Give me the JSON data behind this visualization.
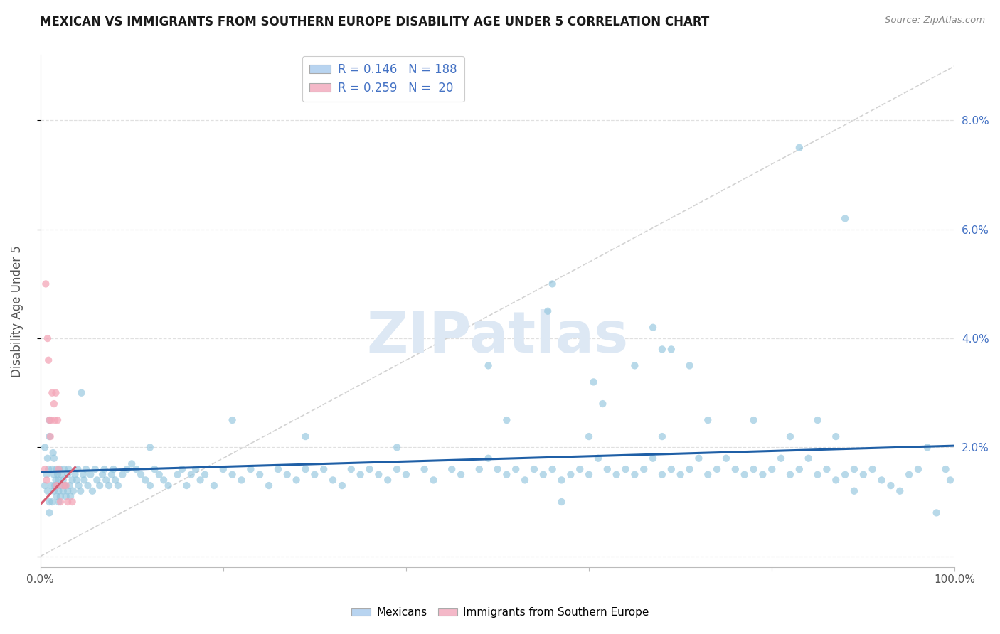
{
  "title": "MEXICAN VS IMMIGRANTS FROM SOUTHERN EUROPE DISABILITY AGE UNDER 5 CORRELATION CHART",
  "source": "Source: ZipAtlas.com",
  "ylabel": "Disability Age Under 5",
  "xlim": [
    0,
    1.0
  ],
  "ylim": [
    -0.002,
    0.092
  ],
  "plot_ylim": [
    0.0,
    0.09
  ],
  "yticks": [
    0.0,
    0.02,
    0.04,
    0.06,
    0.08
  ],
  "xtick_positions": [
    0.0,
    0.2,
    0.4,
    0.6,
    0.8,
    1.0
  ],
  "xtick_labels": [
    "0.0%",
    "",
    "",
    "",
    "",
    "100.0%"
  ],
  "blue_color": "#92c5de",
  "pink_color": "#f4a6b8",
  "blue_line_color": "#1f5fa6",
  "pink_line_color": "#d45a70",
  "dashed_line_color": "#c8c8c8",
  "background_color": "#ffffff",
  "grid_color": "#e0e0e0",
  "watermark_text": "ZIPatlas",
  "watermark_color": "#dde8f4",
  "blue_intercept": 0.0155,
  "blue_slope": 0.0048,
  "pink_intercept": 0.0095,
  "pink_slope": 0.18,
  "legend_label_blue": "R = 0.146   N = 188",
  "legend_label_pink": "R = 0.259   N =  20",
  "legend_facecolor_blue": "#b8d4f0",
  "legend_facecolor_pink": "#f4b8c8",
  "blue_x": [
    0.005,
    0.005,
    0.007,
    0.008,
    0.008,
    0.009,
    0.01,
    0.01,
    0.01,
    0.01,
    0.012,
    0.013,
    0.013,
    0.014,
    0.015,
    0.015,
    0.015,
    0.016,
    0.017,
    0.018,
    0.018,
    0.018,
    0.019,
    0.02,
    0.02,
    0.02,
    0.021,
    0.022,
    0.022,
    0.023,
    0.025,
    0.025,
    0.026,
    0.027,
    0.028,
    0.03,
    0.03,
    0.031,
    0.032,
    0.033,
    0.035,
    0.036,
    0.038,
    0.04,
    0.041,
    0.042,
    0.044,
    0.045,
    0.047,
    0.048,
    0.05,
    0.052,
    0.055,
    0.057,
    0.06,
    0.062,
    0.065,
    0.068,
    0.07,
    0.072,
    0.075,
    0.078,
    0.08,
    0.082,
    0.085,
    0.09,
    0.095,
    0.1,
    0.105,
    0.11,
    0.115,
    0.12,
    0.125,
    0.13,
    0.135,
    0.14,
    0.15,
    0.155,
    0.16,
    0.165,
    0.17,
    0.175,
    0.18,
    0.19,
    0.2,
    0.21,
    0.22,
    0.23,
    0.24,
    0.25,
    0.26,
    0.27,
    0.28,
    0.29,
    0.3,
    0.31,
    0.32,
    0.33,
    0.34,
    0.35,
    0.36,
    0.37,
    0.38,
    0.39,
    0.4,
    0.42,
    0.43,
    0.45,
    0.46,
    0.48,
    0.49,
    0.5,
    0.51,
    0.52,
    0.53,
    0.54,
    0.55,
    0.56,
    0.57,
    0.58,
    0.59,
    0.6,
    0.61,
    0.62,
    0.63,
    0.64,
    0.65,
    0.66,
    0.67,
    0.68,
    0.69,
    0.7,
    0.71,
    0.72,
    0.73,
    0.74,
    0.75,
    0.76,
    0.77,
    0.78,
    0.79,
    0.8,
    0.81,
    0.82,
    0.83,
    0.84,
    0.85,
    0.86,
    0.87,
    0.88,
    0.89,
    0.9,
    0.91,
    0.92,
    0.93,
    0.94,
    0.95,
    0.96,
    0.97,
    0.98,
    0.99,
    0.995,
    0.555,
    0.49,
    0.56,
    0.83,
    0.88,
    0.51,
    0.39,
    0.605,
    0.615,
    0.68,
    0.71,
    0.73,
    0.67,
    0.69,
    0.29,
    0.21,
    0.12,
    0.65,
    0.68,
    0.78,
    0.82,
    0.85,
    0.87,
    0.89,
    0.6,
    0.57
  ],
  "blue_y": [
    0.02,
    0.013,
    0.015,
    0.018,
    0.012,
    0.016,
    0.01,
    0.022,
    0.008,
    0.025,
    0.013,
    0.016,
    0.01,
    0.019,
    0.012,
    0.015,
    0.018,
    0.013,
    0.014,
    0.016,
    0.011,
    0.013,
    0.015,
    0.01,
    0.014,
    0.012,
    0.016,
    0.013,
    0.011,
    0.015,
    0.012,
    0.014,
    0.016,
    0.013,
    0.011,
    0.015,
    0.012,
    0.016,
    0.013,
    0.011,
    0.014,
    0.012,
    0.015,
    0.014,
    0.016,
    0.013,
    0.012,
    0.03,
    0.015,
    0.014,
    0.016,
    0.013,
    0.015,
    0.012,
    0.016,
    0.014,
    0.013,
    0.015,
    0.016,
    0.014,
    0.013,
    0.015,
    0.016,
    0.014,
    0.013,
    0.015,
    0.016,
    0.017,
    0.016,
    0.015,
    0.014,
    0.013,
    0.016,
    0.015,
    0.014,
    0.013,
    0.015,
    0.016,
    0.013,
    0.015,
    0.016,
    0.014,
    0.015,
    0.013,
    0.016,
    0.015,
    0.014,
    0.016,
    0.015,
    0.013,
    0.016,
    0.015,
    0.014,
    0.016,
    0.015,
    0.016,
    0.014,
    0.013,
    0.016,
    0.015,
    0.016,
    0.015,
    0.014,
    0.016,
    0.015,
    0.016,
    0.014,
    0.016,
    0.015,
    0.016,
    0.018,
    0.016,
    0.015,
    0.016,
    0.014,
    0.016,
    0.015,
    0.016,
    0.014,
    0.015,
    0.016,
    0.015,
    0.018,
    0.016,
    0.015,
    0.016,
    0.015,
    0.016,
    0.018,
    0.015,
    0.016,
    0.015,
    0.016,
    0.018,
    0.015,
    0.016,
    0.018,
    0.016,
    0.015,
    0.016,
    0.015,
    0.016,
    0.018,
    0.015,
    0.016,
    0.018,
    0.015,
    0.016,
    0.014,
    0.015,
    0.016,
    0.015,
    0.016,
    0.014,
    0.013,
    0.012,
    0.015,
    0.016,
    0.02,
    0.008,
    0.016,
    0.014,
    0.045,
    0.035,
    0.05,
    0.075,
    0.062,
    0.025,
    0.02,
    0.032,
    0.028,
    0.038,
    0.035,
    0.025,
    0.042,
    0.038,
    0.022,
    0.025,
    0.02,
    0.035,
    0.022,
    0.025,
    0.022,
    0.025,
    0.022,
    0.012,
    0.022,
    0.01
  ],
  "pink_x": [
    0.005,
    0.006,
    0.007,
    0.008,
    0.009,
    0.01,
    0.011,
    0.012,
    0.013,
    0.015,
    0.016,
    0.017,
    0.018,
    0.019,
    0.02,
    0.022,
    0.025,
    0.028,
    0.03,
    0.035
  ],
  "pink_y": [
    0.016,
    0.05,
    0.014,
    0.04,
    0.036,
    0.025,
    0.022,
    0.025,
    0.03,
    0.028,
    0.025,
    0.03,
    0.013,
    0.025,
    0.016,
    0.01,
    0.013,
    0.013,
    0.01,
    0.01
  ]
}
